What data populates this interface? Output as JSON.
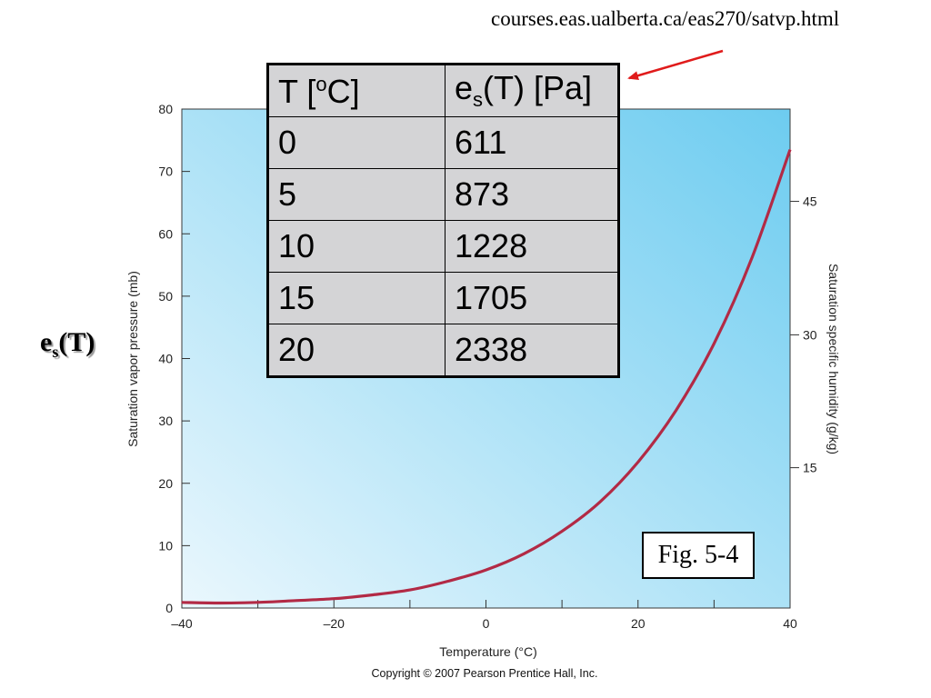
{
  "caption_url": "courses.eas.ualberta.ca/eas270/satvp.html",
  "side_label": {
    "main": "e",
    "sub": "s",
    "rest": "(T)"
  },
  "table": {
    "header": {
      "t_pre": "T  [",
      "t_sup": "o",
      "t_post": "C]",
      "es_pre": "e",
      "es_sub": "s",
      "es_post": "(T) [Pa]"
    },
    "rows": [
      {
        "t": "0",
        "es": "611"
      },
      {
        "t": "5",
        "es": "873"
      },
      {
        "t": "10",
        "es": "1228"
      },
      {
        "t": "15",
        "es": "1705"
      },
      {
        "t": "20",
        "es": "2338"
      }
    ]
  },
  "fig_label": "Fig. 5-4",
  "copyright": "Copyright © 2007 Pearson Prentice Hall, Inc.",
  "colors": {
    "curve": "#b22a45",
    "arrow": "#e01b1b",
    "bg_light": "#eaf7fd",
    "bg_dark": "#6dccf0"
  },
  "chart_data": {
    "type": "line",
    "xlabel": "Temperature (°C)",
    "ylabel": "Saturation vapor pressure (mb)",
    "y2label": "Saturation specific humidity (g/kg)",
    "xlim": [
      -40,
      40
    ],
    "ylim": [
      0,
      80
    ],
    "x_ticks": [
      -40,
      -20,
      0,
      20,
      40
    ],
    "x_tick_labels": [
      "–40",
      "–20",
      "0",
      "20",
      "40"
    ],
    "x_minor_ticks": [
      -30,
      -10,
      10,
      30
    ],
    "y_ticks": [
      0,
      10,
      20,
      30,
      40,
      50,
      60,
      70,
      80
    ],
    "y2_ticks": [
      15,
      30,
      45
    ],
    "y2_positions_mb": [
      22.5,
      43.8,
      65.2
    ],
    "grid": false,
    "series": [
      {
        "x": [
          -40,
          -35,
          -30,
          -25,
          -20,
          -15,
          -10,
          -5,
          0,
          5,
          10,
          15,
          20,
          25,
          30,
          35,
          40
        ],
        "y": [
          0.9,
          0.8,
          0.9,
          1.2,
          1.5,
          2.1,
          2.9,
          4.3,
          6.1,
          8.7,
          12.3,
          17.0,
          23.4,
          31.7,
          42.4,
          56.2,
          73.5
        ]
      }
    ]
  }
}
